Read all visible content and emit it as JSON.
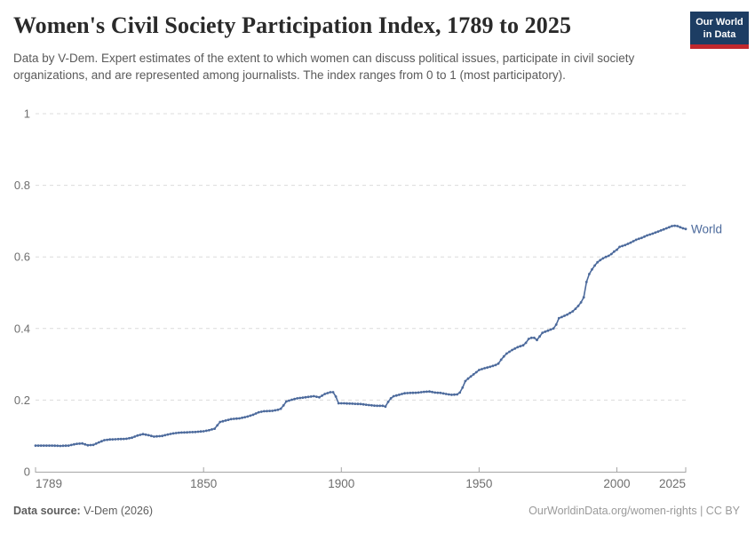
{
  "header": {
    "title": "Women's Civil Society Participation Index, 1789 to 2025",
    "subtitle": "Data by V-Dem. Expert estimates of the extent to which women can discuss political issues, participate in civil society organizations, and are represented among journalists. The index ranges from 0 to 1 (most participatory).",
    "logo": {
      "line1": "Our World",
      "line2": "in Data",
      "bg_color": "#1d3d63",
      "accent_color": "#c0282d"
    }
  },
  "chart_data": {
    "type": "line",
    "title": "Women's Civil Society Participation Index, 1789 to 2025",
    "xlabel": "",
    "ylabel": "",
    "xlim": [
      1789,
      2025
    ],
    "ylim": [
      0,
      1
    ],
    "x_ticks": [
      1789,
      1850,
      1900,
      1950,
      2000,
      2025
    ],
    "y_ticks": [
      0,
      0.2,
      0.4,
      0.6,
      0.8,
      1
    ],
    "grid": "horizontal-dashed",
    "legend_position": "end-of-line",
    "series": [
      {
        "name": "World",
        "color": "#4c6a9c",
        "points": [
          [
            1789,
            0.073
          ],
          [
            1792,
            0.073
          ],
          [
            1795,
            0.073
          ],
          [
            1798,
            0.072
          ],
          [
            1801,
            0.073
          ],
          [
            1804,
            0.078
          ],
          [
            1806,
            0.079
          ],
          [
            1808,
            0.074
          ],
          [
            1810,
            0.075
          ],
          [
            1812,
            0.082
          ],
          [
            1814,
            0.088
          ],
          [
            1816,
            0.09
          ],
          [
            1819,
            0.091
          ],
          [
            1822,
            0.092
          ],
          [
            1824,
            0.095
          ],
          [
            1826,
            0.101
          ],
          [
            1828,
            0.105
          ],
          [
            1830,
            0.102
          ],
          [
            1832,
            0.098
          ],
          [
            1835,
            0.1
          ],
          [
            1837,
            0.104
          ],
          [
            1839,
            0.107
          ],
          [
            1841,
            0.109
          ],
          [
            1844,
            0.11
          ],
          [
            1847,
            0.111
          ],
          [
            1850,
            0.113
          ],
          [
            1852,
            0.116
          ],
          [
            1854,
            0.12
          ],
          [
            1856,
            0.139
          ],
          [
            1858,
            0.143
          ],
          [
            1860,
            0.147
          ],
          [
            1863,
            0.149
          ],
          [
            1866,
            0.154
          ],
          [
            1868,
            0.159
          ],
          [
            1870,
            0.166
          ],
          [
            1872,
            0.169
          ],
          [
            1875,
            0.17
          ],
          [
            1877,
            0.173
          ],
          [
            1878,
            0.176
          ],
          [
            1879,
            0.185
          ],
          [
            1880,
            0.196
          ],
          [
            1882,
            0.201
          ],
          [
            1884,
            0.205
          ],
          [
            1886,
            0.207
          ],
          [
            1888,
            0.209
          ],
          [
            1890,
            0.211
          ],
          [
            1892,
            0.208
          ],
          [
            1894,
            0.217
          ],
          [
            1896,
            0.222
          ],
          [
            1897,
            0.222
          ],
          [
            1898,
            0.21
          ],
          [
            1899,
            0.191
          ],
          [
            1901,
            0.191
          ],
          [
            1904,
            0.19
          ],
          [
            1907,
            0.189
          ],
          [
            1910,
            0.186
          ],
          [
            1913,
            0.184
          ],
          [
            1915,
            0.184
          ],
          [
            1916,
            0.182
          ],
          [
            1917,
            0.195
          ],
          [
            1918,
            0.205
          ],
          [
            1919,
            0.211
          ],
          [
            1921,
            0.215
          ],
          [
            1923,
            0.219
          ],
          [
            1925,
            0.22
          ],
          [
            1928,
            0.221
          ],
          [
            1930,
            0.223
          ],
          [
            1932,
            0.224
          ],
          [
            1934,
            0.221
          ],
          [
            1936,
            0.22
          ],
          [
            1938,
            0.217
          ],
          [
            1940,
            0.215
          ],
          [
            1942,
            0.216
          ],
          [
            1943,
            0.221
          ],
          [
            1944,
            0.235
          ],
          [
            1945,
            0.253
          ],
          [
            1946,
            0.26
          ],
          [
            1948,
            0.272
          ],
          [
            1950,
            0.284
          ],
          [
            1952,
            0.289
          ],
          [
            1954,
            0.293
          ],
          [
            1956,
            0.298
          ],
          [
            1957,
            0.302
          ],
          [
            1958,
            0.313
          ],
          [
            1959,
            0.322
          ],
          [
            1960,
            0.33
          ],
          [
            1962,
            0.34
          ],
          [
            1964,
            0.348
          ],
          [
            1966,
            0.353
          ],
          [
            1967,
            0.36
          ],
          [
            1968,
            0.371
          ],
          [
            1969,
            0.374
          ],
          [
            1970,
            0.374
          ],
          [
            1971,
            0.368
          ],
          [
            1972,
            0.378
          ],
          [
            1973,
            0.388
          ],
          [
            1975,
            0.394
          ],
          [
            1977,
            0.4
          ],
          [
            1978,
            0.411
          ],
          [
            1979,
            0.429
          ],
          [
            1980,
            0.432
          ],
          [
            1982,
            0.439
          ],
          [
            1984,
            0.448
          ],
          [
            1985,
            0.455
          ],
          [
            1986,
            0.463
          ],
          [
            1987,
            0.473
          ],
          [
            1988,
            0.487
          ],
          [
            1989,
            0.53
          ],
          [
            1990,
            0.552
          ],
          [
            1991,
            0.565
          ],
          [
            1992,
            0.576
          ],
          [
            1993,
            0.585
          ],
          [
            1994,
            0.591
          ],
          [
            1995,
            0.596
          ],
          [
            1996,
            0.6
          ],
          [
            1997,
            0.603
          ],
          [
            1998,
            0.608
          ],
          [
            1999,
            0.615
          ],
          [
            2000,
            0.62
          ],
          [
            2001,
            0.628
          ],
          [
            2003,
            0.633
          ],
          [
            2005,
            0.64
          ],
          [
            2007,
            0.648
          ],
          [
            2009,
            0.653
          ],
          [
            2011,
            0.66
          ],
          [
            2013,
            0.665
          ],
          [
            2015,
            0.671
          ],
          [
            2017,
            0.677
          ],
          [
            2019,
            0.683
          ],
          [
            2020,
            0.686
          ],
          [
            2021,
            0.687
          ],
          [
            2022,
            0.686
          ],
          [
            2023,
            0.683
          ],
          [
            2024,
            0.68
          ],
          [
            2025,
            0.678
          ]
        ]
      }
    ],
    "colors": {
      "grid": "#dcdcdc",
      "axis": "#a5a5a5",
      "tick_label": "#6e6e6e"
    }
  },
  "footer": {
    "source_label": "Data source:",
    "source_value": " V-Dem (2026)",
    "credit": "OurWorldinData.org/women-rights | CC BY"
  }
}
